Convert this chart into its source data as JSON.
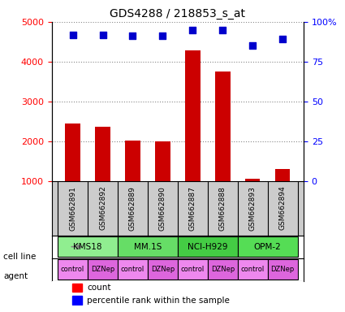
{
  "title": "GDS4288 / 218853_s_at",
  "samples": [
    "GSM662891",
    "GSM662892",
    "GSM662889",
    "GSM662890",
    "GSM662887",
    "GSM662888",
    "GSM662893",
    "GSM662894"
  ],
  "counts": [
    2450,
    2370,
    2020,
    2000,
    4280,
    3760,
    1060,
    1290
  ],
  "percentile_ranks": [
    92,
    92,
    91,
    91,
    95,
    95,
    85,
    89
  ],
  "cell_lines": [
    {
      "label": "KMS18",
      "start": 0,
      "end": 2,
      "color": "#90ee90"
    },
    {
      "label": "MM.1S",
      "start": 2,
      "end": 4,
      "color": "#66dd66"
    },
    {
      "label": "NCI-H929",
      "start": 4,
      "end": 6,
      "color": "#44cc44"
    },
    {
      "label": "OPM-2",
      "start": 6,
      "end": 8,
      "color": "#55dd55"
    }
  ],
  "agents": [
    "control",
    "DZNep",
    "control",
    "DZNep",
    "control",
    "DZNep",
    "control",
    "DZNep"
  ],
  "agent_colors": [
    "#ee88ee",
    "#dd66dd",
    "#ee88ee",
    "#dd66dd",
    "#ee88ee",
    "#dd66dd",
    "#ee88ee",
    "#dd66dd"
  ],
  "bar_color": "#cc0000",
  "dot_color": "#0000cc",
  "ylim_left": [
    1000,
    5000
  ],
  "ylim_right": [
    0,
    100
  ],
  "yticks_left": [
    1000,
    2000,
    3000,
    4000,
    5000
  ],
  "yticks_right": [
    0,
    25,
    50,
    75,
    100
  ],
  "yticklabels_right": [
    "0",
    "25",
    "50",
    "75",
    "100%"
  ],
  "background_color": "#ffffff",
  "grid_color": "#888888"
}
